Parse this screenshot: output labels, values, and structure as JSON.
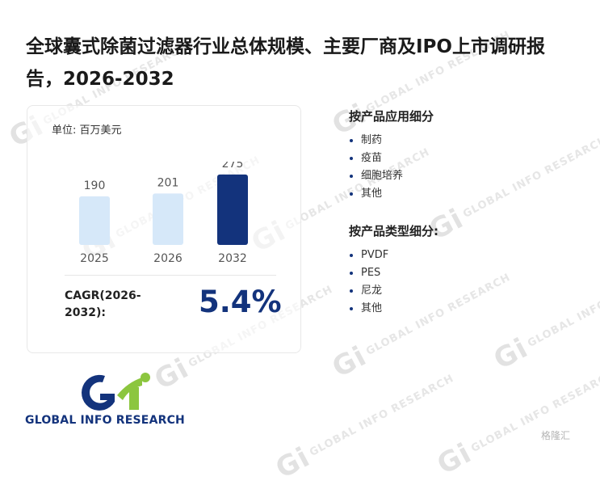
{
  "report": {
    "title": "全球囊式除菌过滤器行业总体规模、主要厂商及IPO上市调研报告，2026-2032"
  },
  "unit_label": "单位: 百万美元",
  "chart_data": {
    "type": "bar",
    "categories": [
      "2025",
      "2026",
      "2032"
    ],
    "values": [
      190,
      201,
      275
    ],
    "ylim": [
      0,
      300
    ],
    "bar_colors": [
      "#d6e8f9",
      "#d6e8f9",
      "#13337c"
    ],
    "value_labels": [
      "190",
      "201",
      "275"
    ],
    "grid": false
  },
  "cagr": {
    "label": "CAGR(2026-2032):",
    "value": "5.4%"
  },
  "application_section": {
    "title": "按产品应用细分",
    "items": [
      "制药",
      "疫苗",
      "细胞培养",
      "其他"
    ]
  },
  "type_section": {
    "title": "按产品类型细分:",
    "items": [
      "PVDF",
      "PES",
      "尼龙",
      "其他"
    ]
  },
  "logo": {
    "text": "GLOBAL INFO RESEARCH"
  },
  "watermark": {
    "text": "GLOBAL INFO RESEARCH"
  },
  "corner_badge": {
    "text": "格隆汇"
  },
  "colors": {
    "navy": "#13337c",
    "light_bar": "#d6e8f9",
    "green": "#8cc63f"
  }
}
